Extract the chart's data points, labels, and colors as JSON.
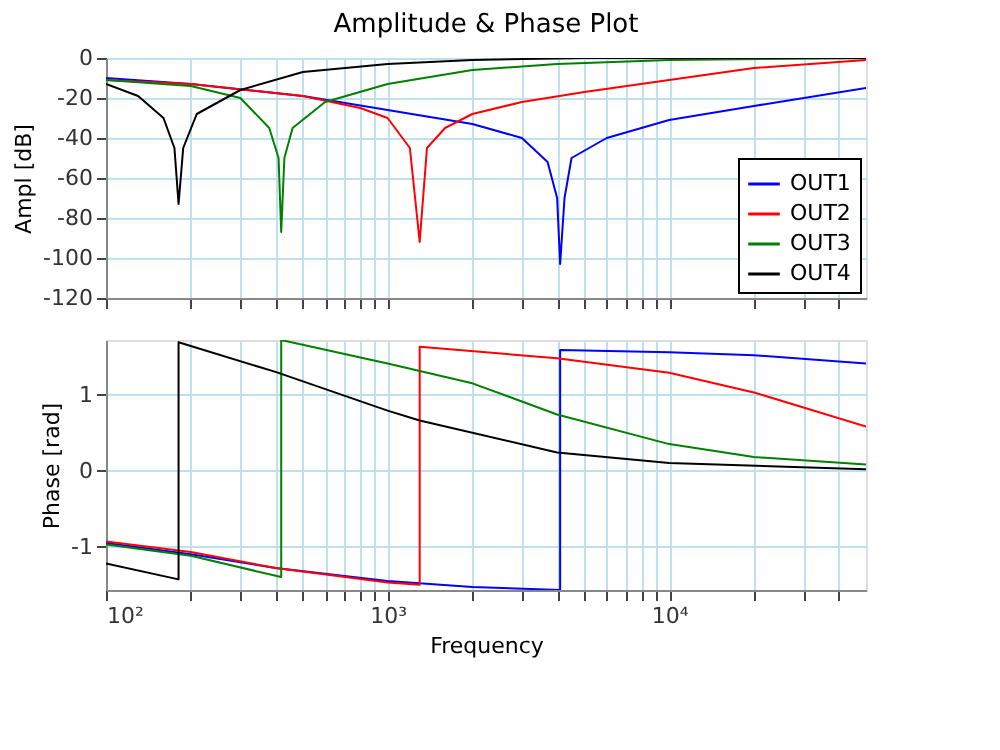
{
  "chart_data": [
    {
      "type": "line",
      "title": "Amplitude & Phase Plot",
      "ylabel": "Ampl [dB]",
      "log": "x",
      "xlim": [
        100,
        50000
      ],
      "ylim": [
        -120,
        0
      ],
      "yticks": [
        -120,
        -100,
        -80,
        -60,
        -40,
        -20,
        0
      ],
      "xticks": [
        {
          "value": 100,
          "label": null
        },
        {
          "value": 200,
          "label": null
        },
        {
          "value": 300,
          "label": null
        },
        {
          "value": 400,
          "label": null
        },
        {
          "value": 500,
          "label": null
        },
        {
          "value": 600,
          "label": null
        },
        {
          "value": 700,
          "label": null
        },
        {
          "value": 800,
          "label": null
        },
        {
          "value": 900,
          "label": null
        },
        {
          "value": 1000,
          "label": null
        },
        {
          "value": 2000,
          "label": null
        },
        {
          "value": 3000,
          "label": null
        },
        {
          "value": 4000,
          "label": null
        },
        {
          "value": 5000,
          "label": null
        },
        {
          "value": 6000,
          "label": null
        },
        {
          "value": 7000,
          "label": null
        },
        {
          "value": 8000,
          "label": null
        },
        {
          "value": 9000,
          "label": null
        },
        {
          "value": 10000,
          "label": null
        },
        {
          "value": 20000,
          "label": null
        },
        {
          "value": 30000,
          "label": null
        },
        {
          "value": 40000,
          "label": null
        }
      ],
      "tick_labels": "y",
      "grid": true,
      "legend": "bottom right",
      "line_style": "solid",
      "marker": "none",
      "series": [
        {
          "name": "OUT1",
          "color": "#0000ff",
          "x": [
            100,
            200,
            500,
            1000,
            2000,
            3000,
            3700,
            4000,
            4100,
            4250,
            4500,
            6000,
            10000,
            20000,
            50000
          ],
          "values": [
            -10,
            -13,
            -19,
            -26,
            -33,
            -40,
            -52,
            -70,
            -103,
            -70,
            -50,
            -40,
            -31,
            -24,
            -15
          ]
        },
        {
          "name": "OUT2",
          "color": "#ff0000",
          "x": [
            100,
            200,
            500,
            800,
            1000,
            1200,
            1300,
            1380,
            1600,
            2000,
            3000,
            5000,
            10000,
            20000,
            50000
          ],
          "values": [
            -11,
            -13,
            -19,
            -25,
            -30,
            -45,
            -92,
            -45,
            -35,
            -28,
            -22,
            -17,
            -11,
            -5,
            -1
          ]
        },
        {
          "name": "OUT3",
          "color": "#008000",
          "x": [
            100,
            200,
            300,
            380,
            410,
            419,
            430,
            460,
            600,
            1000,
            2000,
            4000,
            10000,
            50000
          ],
          "values": [
            -11,
            -14,
            -20,
            -35,
            -50,
            -87,
            -50,
            -35,
            -22,
            -13,
            -6,
            -3,
            -1,
            0
          ]
        },
        {
          "name": "OUT4",
          "color": "#000000",
          "x": [
            100,
            130,
            160,
            175,
            181,
            188,
            210,
            300,
            500,
            1000,
            2000,
            5000,
            50000
          ],
          "values": [
            -13,
            -19,
            -30,
            -45,
            -73,
            -45,
            -28,
            -16,
            -7,
            -3,
            -1,
            0,
            0
          ]
        }
      ]
    },
    {
      "type": "line",
      "xlabel": "Frequency",
      "ylabel": "Phase [rad]",
      "log": "x",
      "xlim": [
        100,
        50000
      ],
      "ylim": [
        -1.57,
        1.72
      ],
      "yticks": [
        -1,
        0,
        1
      ],
      "xticks": [
        {
          "value": 100,
          "label": "10²"
        },
        {
          "value": 200,
          "label": null
        },
        {
          "value": 300,
          "label": null
        },
        {
          "value": 400,
          "label": null
        },
        {
          "value": 500,
          "label": null
        },
        {
          "value": 600,
          "label": null
        },
        {
          "value": 700,
          "label": null
        },
        {
          "value": 800,
          "label": null
        },
        {
          "value": 900,
          "label": null
        },
        {
          "value": 1000,
          "label": "10³"
        },
        {
          "value": 2000,
          "label": null
        },
        {
          "value": 3000,
          "label": null
        },
        {
          "value": 4000,
          "label": null
        },
        {
          "value": 5000,
          "label": null
        },
        {
          "value": 6000,
          "label": null
        },
        {
          "value": 7000,
          "label": null
        },
        {
          "value": 8000,
          "label": null
        },
        {
          "value": 9000,
          "label": null
        },
        {
          "value": 10000,
          "label": "10⁴"
        },
        {
          "value": 20000,
          "label": null
        },
        {
          "value": 30000,
          "label": null
        },
        {
          "value": 40000,
          "label": null
        }
      ],
      "grid": true,
      "line_style": "solid",
      "marker": "none",
      "series": [
        {
          "color": "#0000ff",
          "x": [
            100,
            200,
            400,
            1000,
            2000,
            4100,
            4100,
            10000,
            20000,
            50000
          ],
          "values": [
            -0.95,
            -1.1,
            -1.28,
            -1.45,
            -1.53,
            -1.57,
            1.59,
            1.56,
            1.52,
            1.41
          ]
        },
        {
          "color": "#ff0000",
          "x": [
            100,
            200,
            400,
            1000,
            1300,
            1300,
            4000,
            10000,
            20000,
            50000
          ],
          "values": [
            -0.93,
            -1.07,
            -1.28,
            -1.47,
            -1.5,
            1.63,
            1.48,
            1.29,
            1.03,
            0.58
          ]
        },
        {
          "color": "#008000",
          "x": [
            100,
            200,
            419,
            419,
            1000,
            2000,
            4000,
            10000,
            20000,
            50000
          ],
          "values": [
            -0.97,
            -1.12,
            -1.4,
            1.72,
            1.41,
            1.15,
            0.74,
            0.35,
            0.18,
            0.08
          ]
        },
        {
          "color": "#000000",
          "x": [
            100,
            181,
            181,
            400,
            1000,
            1300,
            4000,
            10000,
            50000
          ],
          "values": [
            -1.22,
            -1.43,
            1.69,
            1.3,
            0.79,
            0.66,
            0.24,
            0.1,
            0.02
          ]
        }
      ]
    }
  ]
}
